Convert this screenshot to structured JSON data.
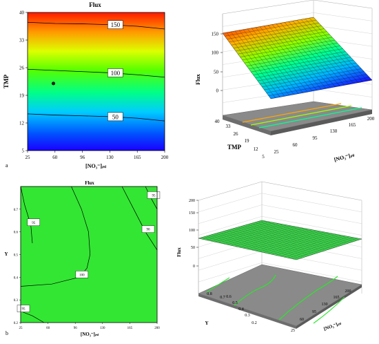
{
  "panels": {
    "a": {
      "label": "a",
      "contour": {
        "title": "Flux",
        "xlabel": "[NO₃⁻]ᵢₙₗ",
        "ylabel": "TMP",
        "xticks": [
          "25",
          "60",
          "96",
          "130",
          "165",
          "200"
        ],
        "yticks": [
          "5",
          "12",
          "19",
          "26",
          "33",
          "40"
        ],
        "contour_labels": [
          "150",
          "100",
          "50"
        ]
      },
      "surface": {
        "zlabel": "Flux",
        "xlabel": "[NO₃⁻]ᵢₙₗ",
        "ylabel": "TMP",
        "zticks": [
          "0",
          "50",
          "100",
          "150",
          "200"
        ],
        "xticks": [
          "25",
          "60",
          "95",
          "130",
          "165",
          "200"
        ],
        "yticks": [
          "5",
          "12",
          "19",
          "26",
          "33",
          "40"
        ]
      }
    },
    "b": {
      "label": "b",
      "contour": {
        "title": "Flux",
        "xlabel": "[NO₃⁻]ᵢₙₗ",
        "ylabel": "Y",
        "xticks": [
          "25",
          "60",
          "96",
          "130",
          "165",
          "200"
        ],
        "yticks": [
          "0.2",
          "0.3",
          "0.4",
          "0.5",
          "0.6",
          "0.7"
        ],
        "contour_labels": [
          "95",
          "95",
          "100",
          "90",
          "95"
        ]
      },
      "surface": {
        "zlabel": "Flux",
        "xlabel": "[NO₃⁻]ᵢₙₗ",
        "ylabel": "Y",
        "zticks": [
          "0",
          "50",
          "100",
          "150",
          "200"
        ],
        "xticks": [
          "25",
          "60",
          "95",
          "130",
          "165",
          "200"
        ],
        "yticks": [
          "0.2",
          "0.3",
          "0.4",
          "0.5",
          "0.6",
          "0.7",
          "0.8"
        ]
      }
    }
  },
  "chart_data": [
    {
      "type": "heatmap",
      "title": "Flux",
      "xlabel": "[NO₃⁻]ᵢₙₗ",
      "ylabel": "TMP",
      "xlim": [
        25,
        200
      ],
      "ylim": [
        5,
        40
      ],
      "contours": [
        {
          "level": 150,
          "x": [
            25,
            60,
            96,
            130,
            165,
            200
          ],
          "y": [
            37.5,
            37.2,
            37.1,
            36.9,
            36.5,
            35.8
          ]
        },
        {
          "level": 100,
          "x": [
            25,
            60,
            96,
            130,
            165,
            200
          ],
          "y": [
            25.6,
            25.3,
            25.0,
            24.7,
            24.2,
            23.6
          ]
        },
        {
          "level": 50,
          "x": [
            25,
            60,
            96,
            130,
            165,
            200
          ],
          "y": [
            14.3,
            14.0,
            13.8,
            13.6,
            13.2,
            12.5
          ]
        }
      ],
      "points": [
        {
          "x": 58,
          "y": 22
        }
      ]
    },
    {
      "type": "area",
      "title": "",
      "xlabel": "[NO₃⁻]ᵢₙₗ",
      "ylabel": "TMP",
      "zlabel": "Flux",
      "xlim": [
        25,
        200
      ],
      "ylim": [
        5,
        40
      ],
      "zlim": [
        0,
        200
      ],
      "corners": [
        {
          "x": 25,
          "y": 5,
          "z": -20
        },
        {
          "x": 200,
          "y": 5,
          "z": -25
        },
        {
          "x": 200,
          "y": 40,
          "z": 150
        },
        {
          "x": 25,
          "y": 40,
          "z": 170
        }
      ]
    },
    {
      "type": "heatmap",
      "title": "Flux",
      "xlabel": "[NO₃⁻]ᵢₙₗ",
      "ylabel": "Y",
      "xlim": [
        25,
        200
      ],
      "ylim": [
        0.2,
        0.8
      ],
      "contours": [
        {
          "level": 95,
          "x": [
            25,
            40,
            55
          ],
          "y": [
            0.25,
            0.23,
            0.2
          ]
        },
        {
          "level": 95,
          "x": [
            25,
            30,
            38,
            40
          ],
          "y": [
            0.8,
            0.72,
            0.63,
            0.55
          ]
        },
        {
          "level": 90,
          "x": [
            90,
            103,
            112,
            114,
            110,
            100,
            65,
            25
          ],
          "y": [
            0.8,
            0.7,
            0.6,
            0.5,
            0.44,
            0.4,
            0.37,
            0.36
          ]
        },
        {
          "level": 95,
          "x": [
            155,
            170,
            185,
            200
          ],
          "y": [
            0.8,
            0.7,
            0.6,
            0.52
          ]
        },
        {
          "level": 100,
          "x": [
            185,
            192,
            200
          ],
          "y": [
            0.8,
            0.75,
            0.7
          ]
        }
      ]
    },
    {
      "type": "area",
      "title": "",
      "xlabel": "[NO₃⁻]ᵢₙₗ",
      "ylabel": "Y",
      "zlabel": "Flux",
      "xlim": [
        25,
        200
      ],
      "ylim": [
        0.2,
        0.8
      ],
      "zlim": [
        0,
        200
      ],
      "corners": [
        {
          "x": 25,
          "y": 0.2,
          "z": 95
        },
        {
          "x": 200,
          "y": 0.2,
          "z": 92
        },
        {
          "x": 200,
          "y": 0.8,
          "z": 98
        },
        {
          "x": 25,
          "y": 0.8,
          "z": 95
        }
      ]
    }
  ]
}
